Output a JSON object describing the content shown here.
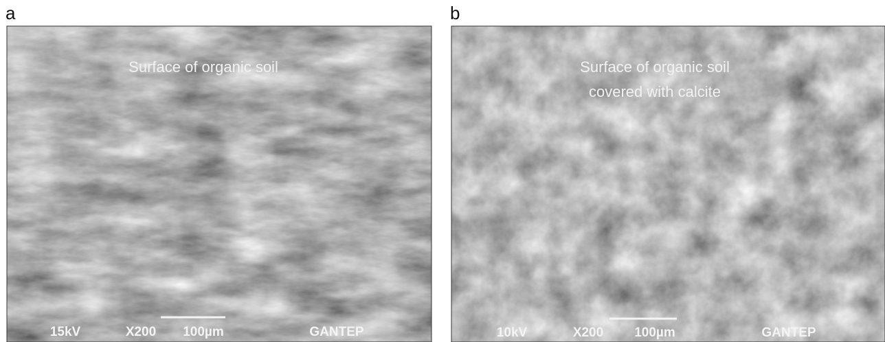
{
  "panels": [
    {
      "label": "a",
      "caption": [
        "Surface of organic soil"
      ],
      "voltage": "15kV",
      "magnification": "X200",
      "scale": "100µm",
      "lab": "GANTEP"
    },
    {
      "label": "b",
      "caption": [
        "Surface of organic soil",
        "covered with calcite"
      ],
      "voltage": "10kV",
      "magnification": "X200",
      "scale": "100µm",
      "lab": "GANTEP"
    }
  ]
}
